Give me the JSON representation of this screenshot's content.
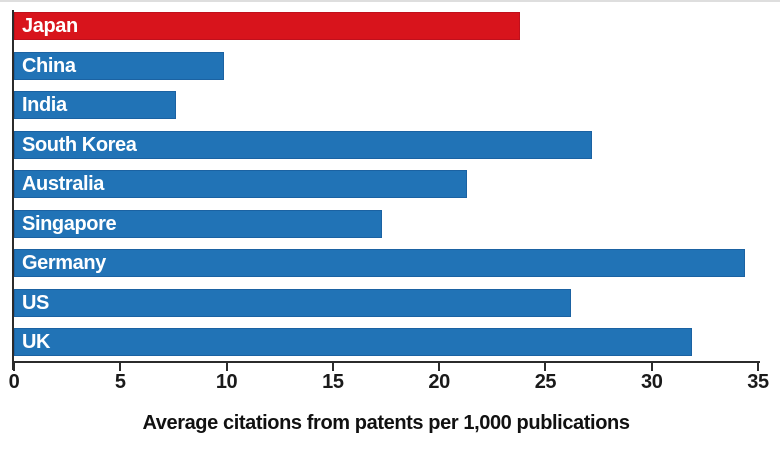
{
  "chart_data": {
    "type": "bar",
    "orientation": "horizontal",
    "categories": [
      "Japan",
      "China",
      "India",
      "South Korea",
      "Australia",
      "Singapore",
      "Germany",
      "US",
      "UK"
    ],
    "values": [
      23.8,
      9.9,
      7.6,
      27.2,
      21.3,
      17.3,
      34.4,
      26.2,
      31.9
    ],
    "highlight_category": "Japan",
    "xlabel": "Average citations from patents per 1,000 publications",
    "xlim": [
      0,
      35
    ],
    "xticks": [
      0,
      5,
      10,
      15,
      20,
      25,
      30,
      35
    ],
    "grid": false,
    "legend": "none",
    "colors": {
      "bar_default": "#2173b6",
      "bar_default_border": "#1b62a2",
      "bar_highlight": "#d8141c",
      "bar_highlight_border": "#c0101c",
      "bar_label_text": "#ffffff",
      "axis": "#2b2b2b",
      "tick_label_text": "#1a1a1a"
    }
  }
}
